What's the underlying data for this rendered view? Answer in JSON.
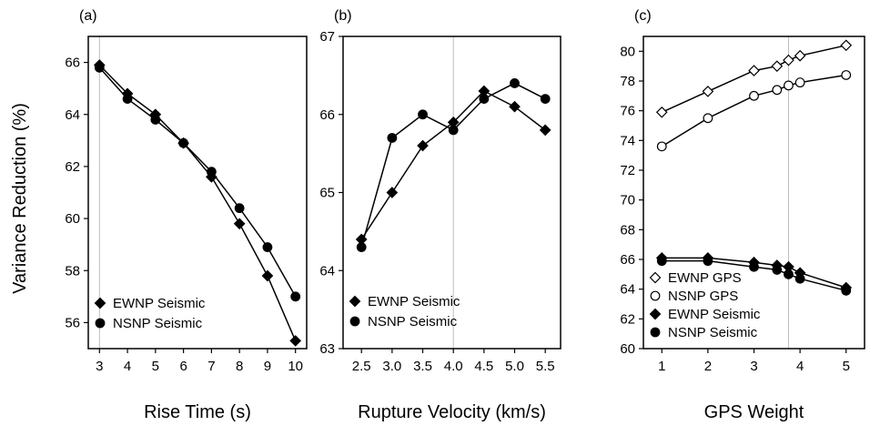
{
  "figure": {
    "ylabel": "Variance Reduction (%)"
  },
  "chart_data": [
    {
      "type": "line",
      "panel_label": "(a)",
      "xlabel": "Rise Time (s)",
      "ylabel": "Variance Reduction (%)",
      "xlim": [
        2.6,
        10.4
      ],
      "ylim": [
        55,
        67
      ],
      "xticks": [
        3,
        4,
        5,
        6,
        7,
        8,
        9,
        10
      ],
      "xtick_labels": [
        "3",
        "4",
        "5",
        "6",
        "7",
        "8",
        "9",
        "10"
      ],
      "yticks": [
        56,
        58,
        60,
        62,
        64,
        66
      ],
      "ytick_labels": [
        "56",
        "58",
        "60",
        "62",
        "64",
        "66"
      ],
      "reference_x": 3,
      "legend_position": "bottom-left",
      "series": [
        {
          "name": "EWNP Seismic",
          "marker": "filled-diamond",
          "x": [
            3,
            4,
            5,
            6,
            7,
            8,
            9,
            10
          ],
          "y": [
            65.9,
            64.8,
            64.0,
            62.9,
            61.6,
            59.8,
            57.8,
            55.3
          ]
        },
        {
          "name": "NSNP Seismic",
          "marker": "filled-circle",
          "x": [
            3,
            4,
            5,
            6,
            7,
            8,
            9,
            10
          ],
          "y": [
            65.8,
            64.6,
            63.8,
            62.9,
            61.8,
            60.4,
            58.9,
            57.0
          ]
        }
      ]
    },
    {
      "type": "line",
      "panel_label": "(b)",
      "xlabel": "Rupture Velocity (km/s)",
      "ylabel": "",
      "xlim": [
        2.2,
        5.75
      ],
      "ylim": [
        63,
        67
      ],
      "xticks": [
        2.5,
        3.0,
        3.5,
        4.0,
        4.5,
        5.0,
        5.5
      ],
      "xtick_labels": [
        "2.5",
        "3.0",
        "3.5",
        "4.0",
        "4.5",
        "5.0",
        "5.5"
      ],
      "yticks": [
        63,
        64,
        65,
        66,
        67
      ],
      "ytick_labels": [
        "63",
        "64",
        "65",
        "66",
        "67"
      ],
      "reference_x": 4.0,
      "legend_position": "bottom-left",
      "series": [
        {
          "name": "EWNP Seismic",
          "marker": "filled-diamond",
          "x": [
            2.5,
            3.0,
            3.5,
            4.0,
            4.5,
            5.0,
            5.5
          ],
          "y": [
            64.4,
            65.0,
            65.6,
            65.9,
            66.3,
            66.1,
            65.8
          ]
        },
        {
          "name": "NSNP Seismic",
          "marker": "filled-circle",
          "x": [
            2.5,
            3.0,
            3.5,
            4.0,
            4.5,
            5.0,
            5.5
          ],
          "y": [
            64.3,
            65.7,
            66.0,
            65.8,
            66.2,
            66.4,
            66.2
          ]
        }
      ]
    },
    {
      "type": "line",
      "panel_label": "(c)",
      "xlabel": "GPS Weight",
      "ylabel": "",
      "xlim": [
        0.6,
        5.4
      ],
      "ylim": [
        60,
        81
      ],
      "xticks": [
        1,
        2,
        3,
        4,
        5
      ],
      "xtick_labels": [
        "1",
        "2",
        "3",
        "4",
        "5"
      ],
      "yticks": [
        60,
        62,
        64,
        66,
        68,
        70,
        72,
        74,
        76,
        78,
        80
      ],
      "ytick_labels": [
        "60",
        "62",
        "64",
        "66",
        "68",
        "70",
        "72",
        "74",
        "76",
        "78",
        "80"
      ],
      "reference_x": 3.75,
      "legend_position": "bottom-left",
      "series": [
        {
          "name": "EWNP GPS",
          "marker": "open-diamond",
          "x": [
            1,
            2,
            3,
            3.5,
            3.75,
            4,
            5
          ],
          "y": [
            75.9,
            77.3,
            78.7,
            79.0,
            79.4,
            79.7,
            80.4
          ]
        },
        {
          "name": "NSNP GPS",
          "marker": "open-circle",
          "x": [
            1,
            2,
            3,
            3.5,
            3.75,
            4,
            5
          ],
          "y": [
            73.6,
            75.5,
            77.0,
            77.4,
            77.7,
            77.9,
            78.4
          ]
        },
        {
          "name": "EWNP Seismic",
          "marker": "filled-diamond",
          "x": [
            1,
            2,
            3,
            3.5,
            3.75,
            4,
            5
          ],
          "y": [
            66.1,
            66.1,
            65.8,
            65.6,
            65.5,
            65.1,
            64.1
          ]
        },
        {
          "name": "NSNP Seismic",
          "marker": "filled-circle",
          "x": [
            1,
            2,
            3,
            3.5,
            3.75,
            4,
            5
          ],
          "y": [
            65.9,
            65.9,
            65.5,
            65.3,
            65.0,
            64.7,
            63.9
          ]
        }
      ]
    }
  ]
}
